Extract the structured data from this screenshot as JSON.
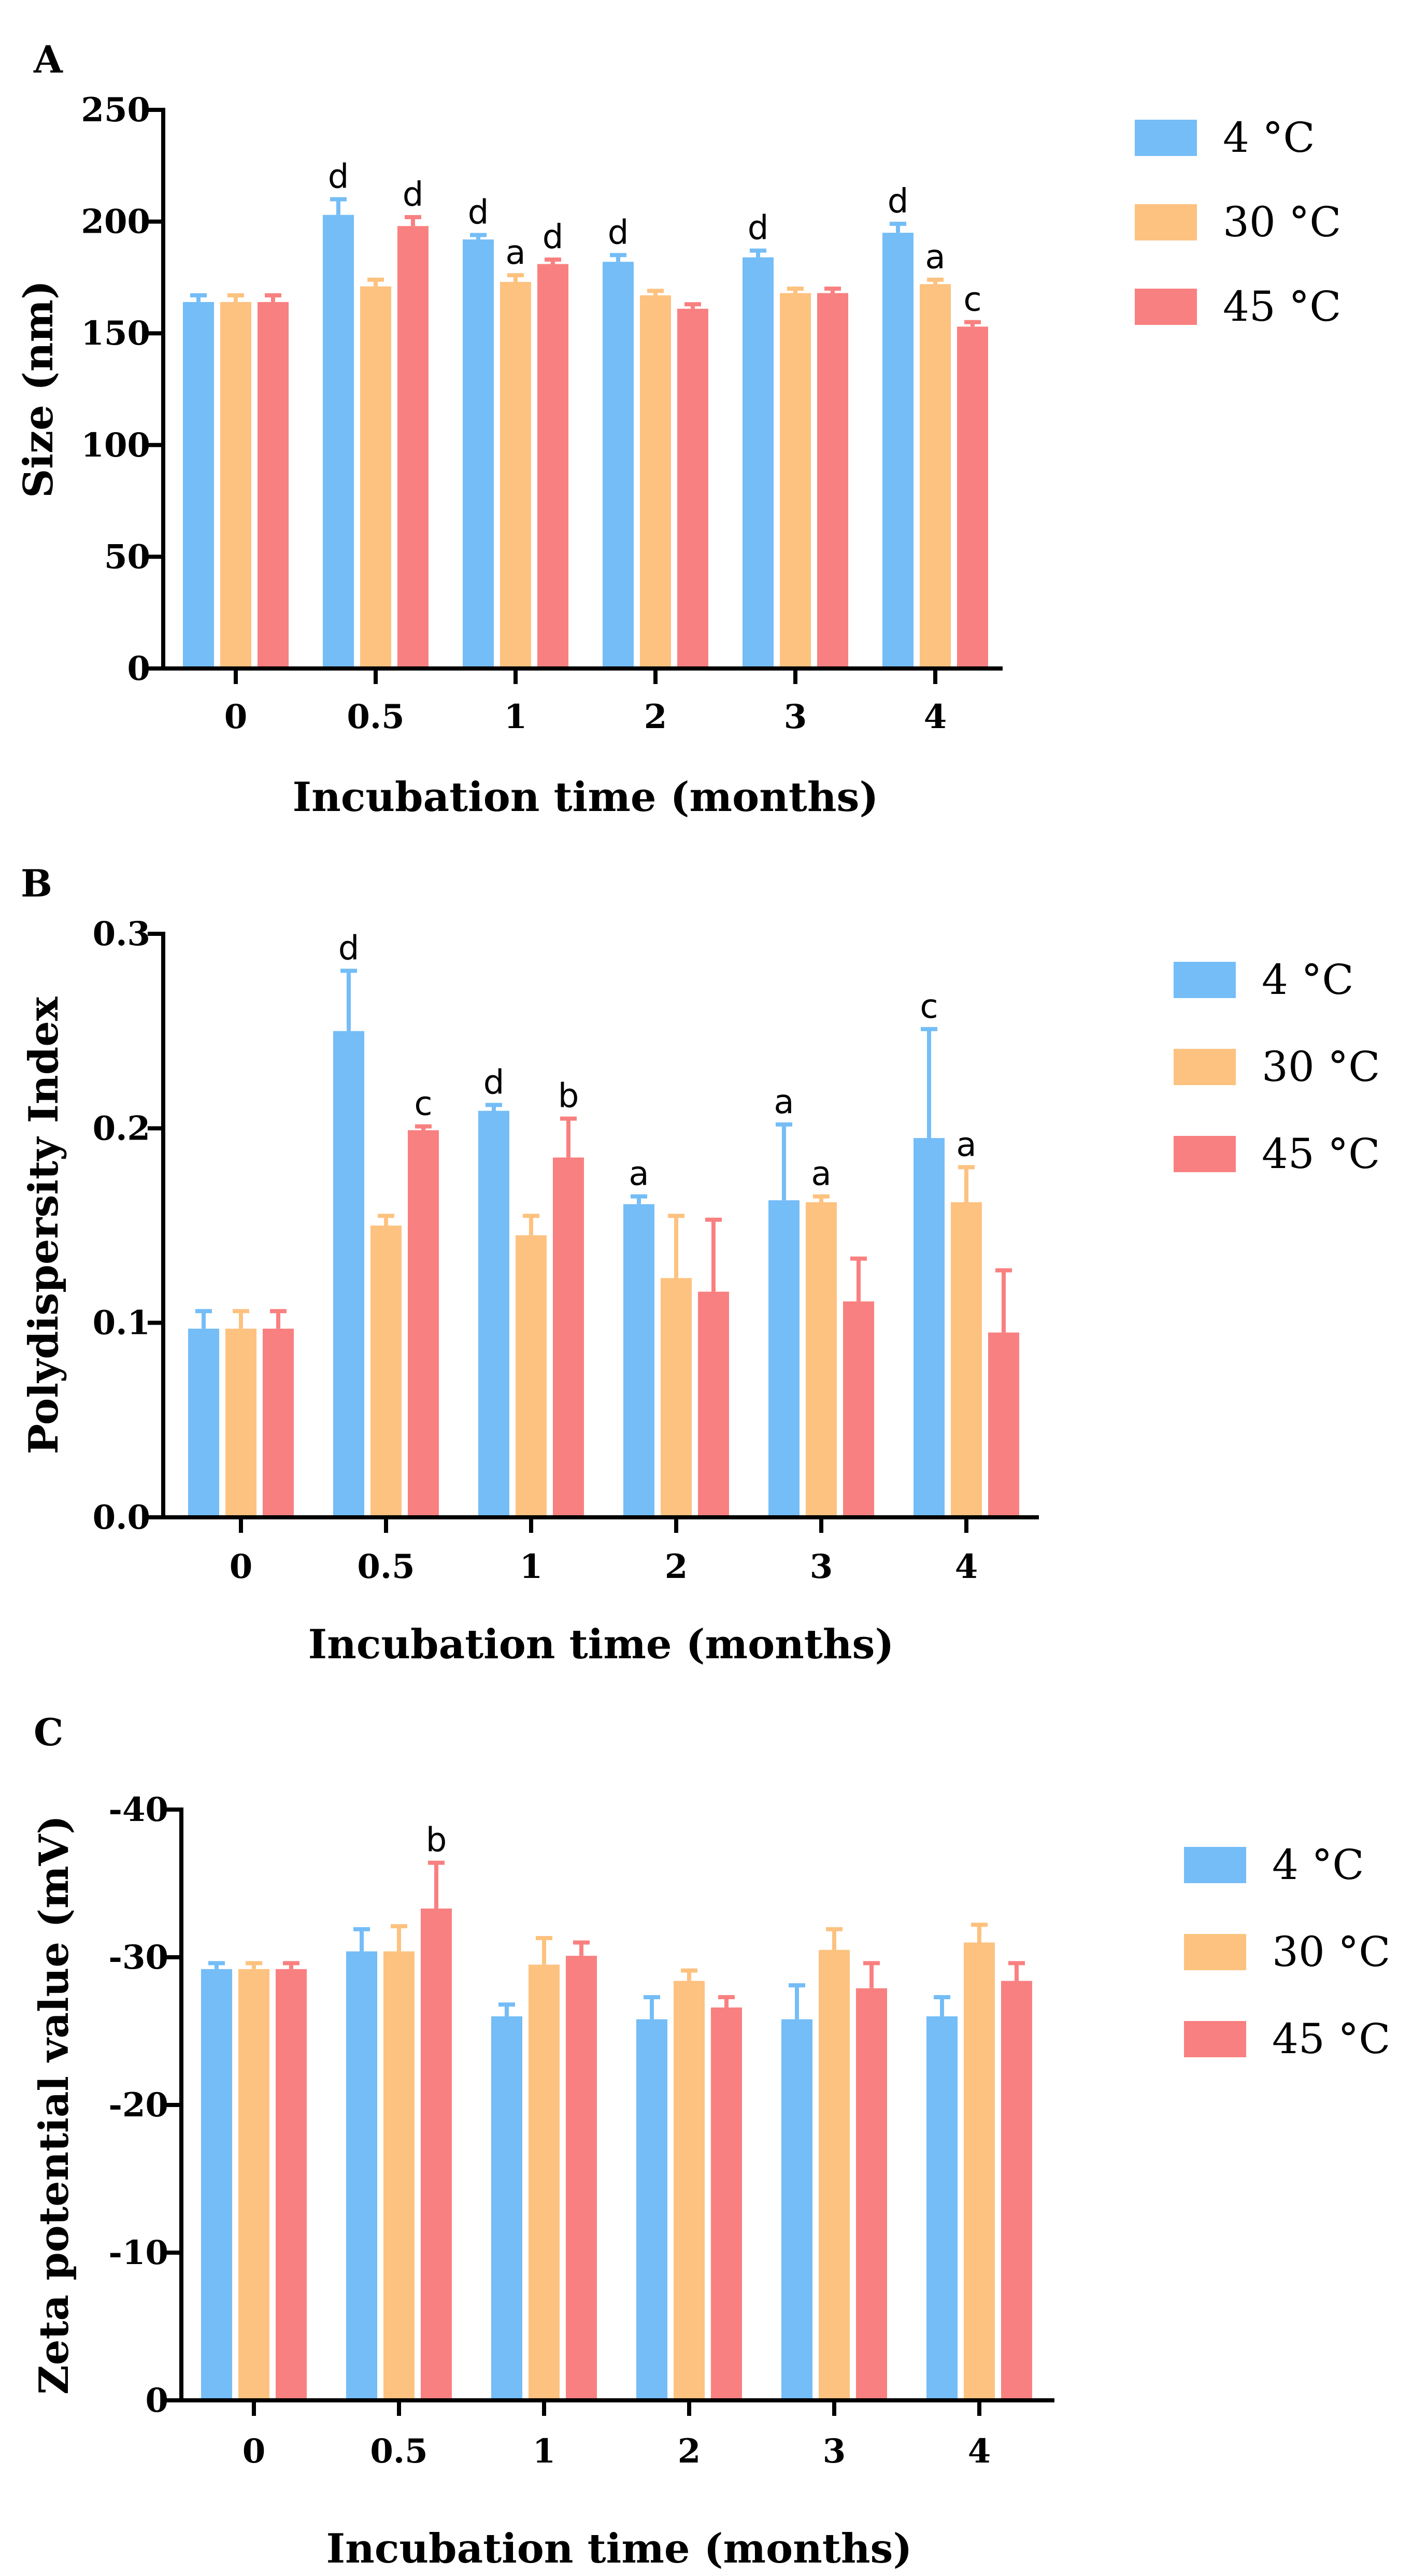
{
  "colors": {
    "s4": "#74BDF7",
    "s30": "#FDC27F",
    "s45": "#F98080"
  },
  "chart_data": [
    {
      "panel_letter": "A",
      "type": "bar",
      "xlabel": "Incubation time (months)",
      "ylabel": "Size (nm)",
      "ylim": [
        0,
        250
      ],
      "yticks": [
        "0",
        "50",
        "100",
        "150",
        "200",
        "250"
      ],
      "categories": [
        "0",
        "0.5",
        "1",
        "2",
        "3",
        "4"
      ],
      "legend": {
        "position": "top-right"
      },
      "series": [
        {
          "name": "4 °C",
          "color_key": "s4",
          "values": [
            164,
            203,
            192,
            182,
            184,
            195
          ],
          "errors": [
            3,
            7,
            2,
            3,
            3,
            4
          ],
          "labels": [
            "",
            "d",
            "d",
            "d",
            "d",
            "d"
          ]
        },
        {
          "name": "30 °C",
          "color_key": "s30",
          "values": [
            164,
            171,
            173,
            167,
            168,
            172
          ],
          "errors": [
            3,
            3,
            3,
            2,
            2,
            2
          ],
          "labels": [
            "",
            "",
            "a",
            "",
            "",
            "a"
          ]
        },
        {
          "name": "45 °C",
          "color_key": "s45",
          "values": [
            164,
            198,
            181,
            161,
            168,
            153
          ],
          "errors": [
            3,
            4,
            2,
            2,
            2,
            2
          ],
          "labels": [
            "",
            "d",
            "d",
            "",
            "",
            "c"
          ]
        }
      ]
    },
    {
      "panel_letter": "B",
      "type": "bar",
      "xlabel": "Incubation time (months)",
      "ylabel": "Polydispersity Index",
      "ylim": [
        0,
        0.3
      ],
      "yticks": [
        "0.0",
        "0.1",
        "0.2",
        "0.3"
      ],
      "categories": [
        "0",
        "0.5",
        "1",
        "2",
        "3",
        "4"
      ],
      "legend": {
        "position": "top-right"
      },
      "series": [
        {
          "name": "4 °C",
          "color_key": "s4",
          "values": [
            0.097,
            0.25,
            0.209,
            0.161,
            0.163,
            0.195
          ],
          "errors": [
            0.009,
            0.031,
            0.003,
            0.004,
            0.039,
            0.056
          ],
          "labels": [
            "",
            "d",
            "d",
            "a",
            "a",
            "c"
          ]
        },
        {
          "name": "30 °C",
          "color_key": "s30",
          "values": [
            0.097,
            0.15,
            0.145,
            0.123,
            0.162,
            0.162
          ],
          "errors": [
            0.009,
            0.005,
            0.01,
            0.032,
            0.003,
            0.018
          ],
          "labels": [
            "",
            "",
            "",
            "",
            "a",
            "a"
          ]
        },
        {
          "name": "45 °C",
          "color_key": "s45",
          "values": [
            0.097,
            0.199,
            0.185,
            0.116,
            0.111,
            0.095
          ],
          "errors": [
            0.009,
            0.002,
            0.02,
            0.037,
            0.022,
            0.032
          ],
          "labels": [
            "",
            "c",
            "b",
            "",
            "",
            ""
          ]
        }
      ]
    },
    {
      "panel_letter": "C",
      "type": "bar",
      "xlabel": "Incubation time (months)",
      "ylabel": "Zeta potential value (mV)",
      "ylim": [
        0,
        -40
      ],
      "yticks": [
        "0",
        "-10",
        "-20",
        "-30",
        "-40"
      ],
      "categories": [
        "0",
        "0.5",
        "1",
        "2",
        "3",
        "4"
      ],
      "legend": {
        "position": "top-right"
      },
      "series": [
        {
          "name": "4 °C",
          "color_key": "s4",
          "values": [
            -29.2,
            -30.4,
            -26.0,
            -25.8,
            -25.8,
            -26.0
          ],
          "errors": [
            0.4,
            1.5,
            0.8,
            1.5,
            2.3,
            1.3
          ],
          "labels": [
            "",
            "",
            "",
            "",
            "",
            ""
          ]
        },
        {
          "name": "30 °C",
          "color_key": "s30",
          "values": [
            -29.2,
            -30.4,
            -29.5,
            -28.4,
            -30.5,
            -31.0
          ],
          "errors": [
            0.4,
            1.7,
            1.8,
            0.7,
            1.4,
            1.2
          ],
          "labels": [
            "",
            "",
            "",
            "",
            "",
            ""
          ]
        },
        {
          "name": "45 °C",
          "color_key": "s45",
          "values": [
            -29.2,
            -33.3,
            -30.1,
            -26.6,
            -27.9,
            -28.4
          ],
          "errors": [
            0.4,
            3.1,
            0.9,
            0.7,
            1.7,
            1.2
          ],
          "labels": [
            "",
            "b",
            "",
            "",
            "",
            ""
          ]
        }
      ]
    }
  ]
}
